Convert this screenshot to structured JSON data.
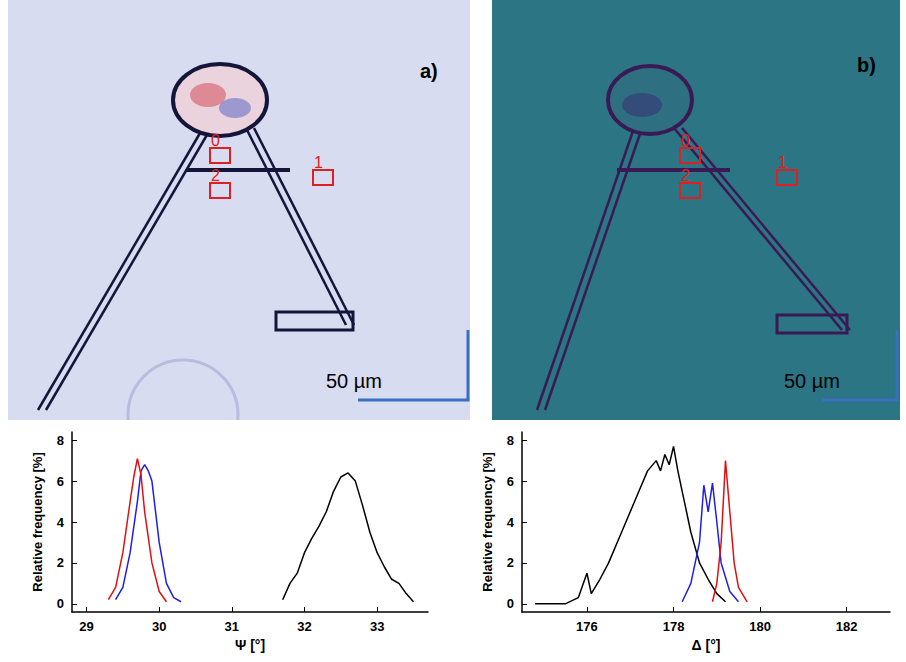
{
  "images": [
    {
      "letter": "a)",
      "scale_bar": "50 µm",
      "regions": [
        "0",
        "1",
        "2"
      ]
    },
    {
      "letter": "b)",
      "scale_bar": "50 µm",
      "regions": [
        "0",
        "1",
        "2"
      ]
    }
  ],
  "chart_data": [
    {
      "type": "line",
      "xlabel": "Ψ [°]",
      "ylabel": "Relative frequency [%]",
      "xlim": [
        28.8,
        33.7
      ],
      "xticks": [
        29,
        30,
        31,
        32,
        33
      ],
      "ylim": [
        -0.4,
        8.4
      ],
      "yticks": [
        0,
        2,
        4,
        6,
        8
      ],
      "grid": false,
      "series": [
        {
          "color": "#000000",
          "x": [
            31.7,
            31.8,
            31.9,
            32.0,
            32.1,
            32.2,
            32.3,
            32.4,
            32.5,
            32.6,
            32.7,
            32.8,
            32.9,
            33.0,
            33.1,
            33.2,
            33.3,
            33.4,
            33.5
          ],
          "values": [
            0.2,
            1.0,
            1.5,
            2.5,
            3.2,
            3.8,
            4.5,
            5.5,
            6.2,
            6.4,
            6.0,
            4.8,
            3.5,
            2.5,
            1.8,
            1.2,
            1.0,
            0.5,
            0.1
          ]
        },
        {
          "color": "#1f1fe0",
          "x": [
            29.4,
            29.5,
            29.6,
            29.7,
            29.75,
            29.8,
            29.85,
            29.9,
            30.0,
            30.1,
            30.2,
            30.3
          ],
          "values": [
            0.2,
            0.8,
            2.5,
            5.0,
            6.5,
            6.8,
            6.5,
            6.0,
            3.0,
            1.0,
            0.3,
            0.1
          ]
        },
        {
          "color": "#e01010",
          "x": [
            29.3,
            29.4,
            29.5,
            29.6,
            29.65,
            29.7,
            29.75,
            29.8,
            29.9,
            30.0,
            30.1
          ],
          "values": [
            0.2,
            0.8,
            2.5,
            5.0,
            6.2,
            7.1,
            6.3,
            4.5,
            2.0,
            0.6,
            0.1
          ]
        }
      ]
    },
    {
      "type": "line",
      "xlabel": "Δ [°]",
      "ylabel": "Relative frequency [%]",
      "xlim": [
        174.5,
        183
      ],
      "xticks": [
        176,
        178,
        180,
        182
      ],
      "ylim": [
        -0.4,
        8.4
      ],
      "yticks": [
        0,
        2,
        4,
        6,
        8
      ],
      "grid": false,
      "series": [
        {
          "color": "#000000",
          "x": [
            174.8,
            175.5,
            175.8,
            176.0,
            176.1,
            176.3,
            176.5,
            176.8,
            177.0,
            177.2,
            177.4,
            177.6,
            177.7,
            177.8,
            177.9,
            178.0,
            178.1,
            178.2,
            178.4,
            178.6,
            178.8,
            179.0,
            179.2
          ],
          "values": [
            0,
            0,
            0.3,
            1.5,
            0.5,
            1.2,
            2.0,
            3.5,
            4.5,
            5.5,
            6.5,
            7.0,
            6.5,
            7.3,
            6.8,
            7.7,
            6.5,
            5.5,
            3.5,
            2.0,
            1.2,
            0.5,
            0.1
          ]
        },
        {
          "color": "#1f1fe0",
          "x": [
            178.2,
            178.4,
            178.6,
            178.7,
            178.8,
            178.9,
            179.0,
            179.1,
            179.3,
            179.5
          ],
          "values": [
            0.1,
            1.0,
            3.0,
            5.8,
            4.5,
            5.9,
            4.0,
            2.0,
            0.6,
            0.1
          ]
        },
        {
          "color": "#e01010",
          "x": [
            178.9,
            179.0,
            179.1,
            179.2,
            179.3,
            179.4,
            179.5,
            179.7
          ],
          "values": [
            0.1,
            1.0,
            3.0,
            7.0,
            4.5,
            2.0,
            0.8,
            0.1
          ]
        }
      ]
    }
  ]
}
